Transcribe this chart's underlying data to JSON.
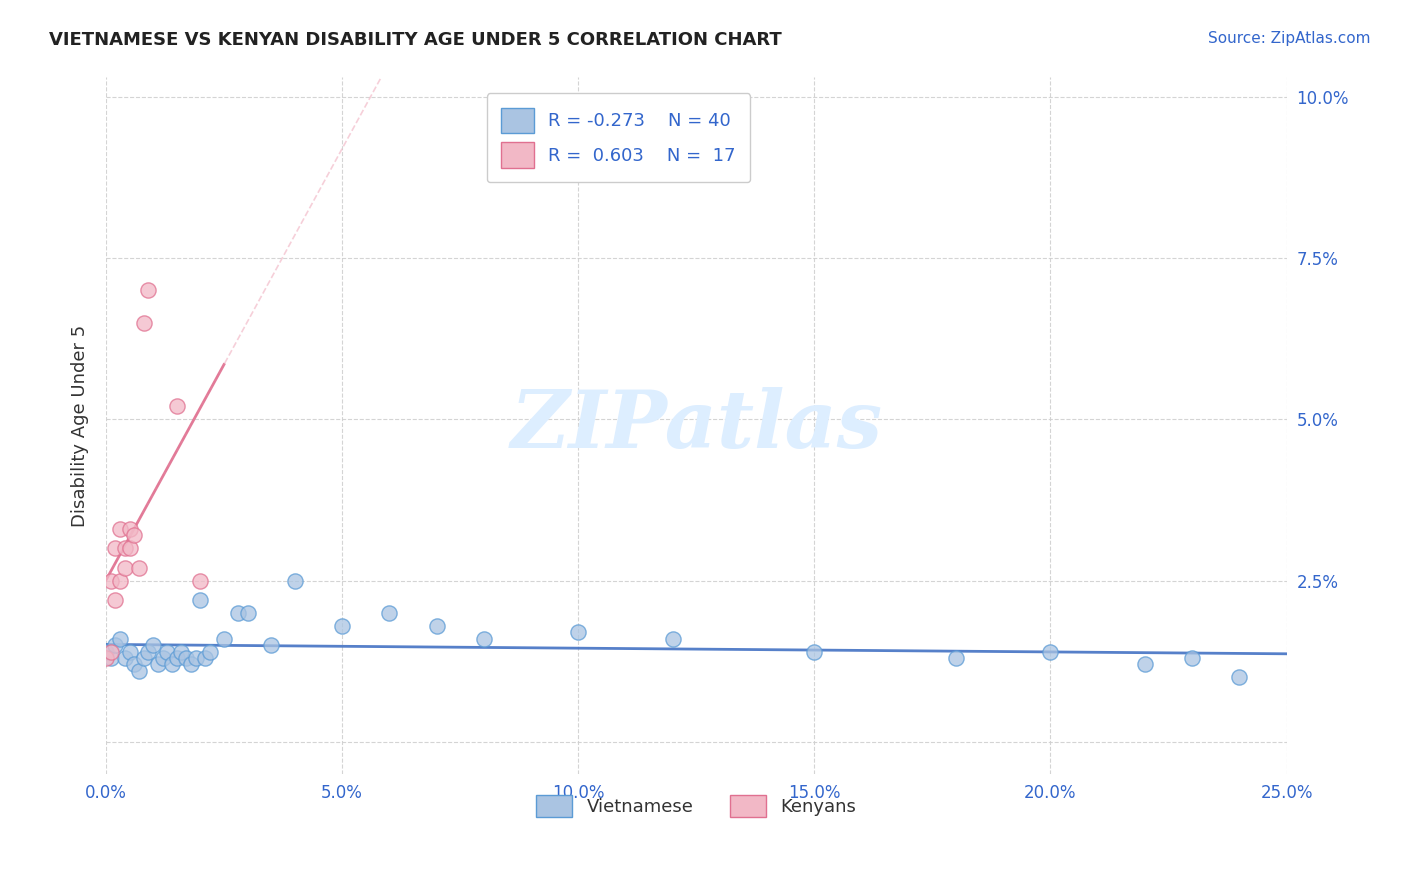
{
  "title": "VIETNAMESE VS KENYAN DISABILITY AGE UNDER 5 CORRELATION CHART",
  "source": "Source: ZipAtlas.com",
  "ylabel": "Disability Age Under 5",
  "xlim": [
    0.0,
    0.25
  ],
  "ylim": [
    -0.005,
    0.103
  ],
  "xticks": [
    0.0,
    0.05,
    0.1,
    0.15,
    0.2,
    0.25
  ],
  "xticklabels": [
    "0.0%",
    "5.0%",
    "10.0%",
    "15.0%",
    "20.0%",
    "25.0%"
  ],
  "yticks": [
    0.0,
    0.025,
    0.05,
    0.075,
    0.1
  ],
  "yticklabels": [
    "",
    "2.5%",
    "5.0%",
    "7.5%",
    "10.0%"
  ],
  "viet_color": "#aac4e2",
  "viet_edge": "#5b9bd5",
  "kenya_color": "#f2b8c6",
  "kenya_edge": "#e07090",
  "background": "#ffffff",
  "grid_color": "#d0d0d0",
  "trendline_viet_color": "#4472c4",
  "trendline_kenya_color": "#e07090",
  "trendline_kenya_dashed_color": "#f0b0c0",
  "watermark_color": "#ddeeff",
  "title_color": "#222222",
  "source_color": "#3366cc",
  "tick_color": "#3366cc",
  "viet_x": [
    0.0,
    0.001,
    0.002,
    0.003,
    0.004,
    0.005,
    0.006,
    0.007,
    0.008,
    0.009,
    0.01,
    0.011,
    0.012,
    0.013,
    0.014,
    0.015,
    0.016,
    0.017,
    0.018,
    0.019,
    0.02,
    0.021,
    0.022,
    0.025,
    0.028,
    0.03,
    0.035,
    0.04,
    0.05,
    0.06,
    0.07,
    0.08,
    0.1,
    0.12,
    0.15,
    0.18,
    0.2,
    0.22,
    0.23,
    0.24
  ],
  "viet_y": [
    0.014,
    0.013,
    0.015,
    0.016,
    0.013,
    0.014,
    0.012,
    0.011,
    0.013,
    0.014,
    0.015,
    0.012,
    0.013,
    0.014,
    0.012,
    0.013,
    0.014,
    0.013,
    0.012,
    0.013,
    0.022,
    0.013,
    0.014,
    0.016,
    0.02,
    0.02,
    0.015,
    0.025,
    0.018,
    0.02,
    0.018,
    0.016,
    0.017,
    0.016,
    0.014,
    0.013,
    0.014,
    0.012,
    0.013,
    0.01
  ],
  "kenya_x": [
    0.0,
    0.001,
    0.001,
    0.002,
    0.002,
    0.003,
    0.003,
    0.004,
    0.004,
    0.005,
    0.005,
    0.006,
    0.007,
    0.008,
    0.009,
    0.015,
    0.02
  ],
  "kenya_y": [
    0.013,
    0.014,
    0.025,
    0.022,
    0.03,
    0.025,
    0.033,
    0.027,
    0.03,
    0.03,
    0.033,
    0.032,
    0.027,
    0.065,
    0.07,
    0.052,
    0.025
  ]
}
